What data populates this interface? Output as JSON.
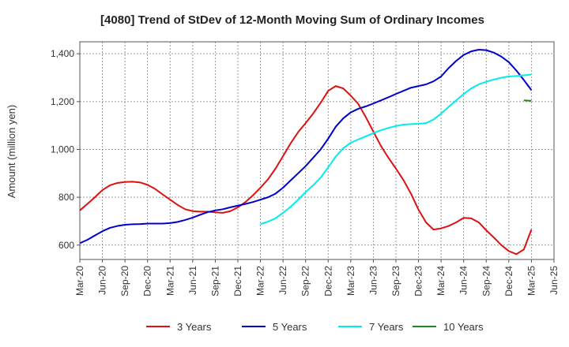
{
  "chart_data": {
    "type": "line",
    "title": "[4080]  Trend of StDev of 12-Month Moving Sum of Ordinary Incomes",
    "xlabel": "",
    "ylabel": "Amount (million yen)",
    "ylim": [
      540,
      1450
    ],
    "yticks": [
      600,
      800,
      1000,
      1200,
      1400
    ],
    "ytick_labels": [
      "600",
      "800",
      "1,000",
      "1,200",
      "1,400"
    ],
    "x_tick_labels": [
      "Mar-20",
      "Jun-20",
      "Sep-20",
      "Dec-20",
      "Mar-21",
      "Jun-21",
      "Sep-21",
      "Dec-21",
      "Mar-22",
      "Jun-22",
      "Sep-22",
      "Dec-22",
      "Mar-23",
      "Jun-23",
      "Sep-23",
      "Dec-23",
      "Mar-24",
      "Jun-24",
      "Sep-24",
      "Dec-24",
      "Mar-25",
      "Jun-25"
    ],
    "grid": true,
    "legend_position": "bottom",
    "series": [
      {
        "name": "3 Years",
        "color": "#dd1111",
        "start_month_index": 0,
        "values": [
          745,
          772,
          800,
          830,
          850,
          860,
          864,
          865,
          862,
          852,
          835,
          812,
          790,
          768,
          750,
          742,
          740,
          740,
          737,
          735,
          742,
          758,
          780,
          808,
          840,
          875,
          920,
          972,
          1025,
          1072,
          1110,
          1150,
          1195,
          1245,
          1265,
          1255,
          1225,
          1190,
          1135,
          1075,
          1015,
          965,
          920,
          872,
          815,
          748,
          695,
          665,
          670,
          680,
          695,
          714,
          712,
          695,
          662,
          632,
          600,
          575,
          562,
          582,
          665
        ]
      },
      {
        "name": "5 Years",
        "color": "#0000cc",
        "start_month_index": 0,
        "values": [
          608,
          622,
          640,
          658,
          672,
          680,
          685,
          687,
          688,
          690,
          690,
          690,
          692,
          697,
          705,
          715,
          727,
          738,
          745,
          750,
          758,
          765,
          772,
          780,
          790,
          800,
          815,
          840,
          870,
          900,
          930,
          965,
          1000,
          1045,
          1095,
          1130,
          1155,
          1170,
          1180,
          1192,
          1205,
          1218,
          1232,
          1245,
          1258,
          1265,
          1272,
          1285,
          1305,
          1340,
          1370,
          1395,
          1410,
          1417,
          1415,
          1405,
          1388,
          1365,
          1330,
          1290,
          1248
        ]
      },
      {
        "name": "7 Years",
        "color": "#00eeee",
        "start_month_index": 24,
        "values": [
          688,
          698,
          712,
          735,
          760,
          790,
          822,
          850,
          882,
          925,
          970,
          1005,
          1028,
          1042,
          1055,
          1068,
          1080,
          1090,
          1098,
          1104,
          1106,
          1107,
          1110,
          1125,
          1150,
          1178,
          1205,
          1232,
          1255,
          1272,
          1283,
          1292,
          1300,
          1305,
          1307,
          1310,
          1313
        ]
      },
      {
        "name": "10 Years",
        "color": "#228822",
        "start_month_index": 59,
        "values": [
          1205,
          1203
        ]
      }
    ]
  }
}
